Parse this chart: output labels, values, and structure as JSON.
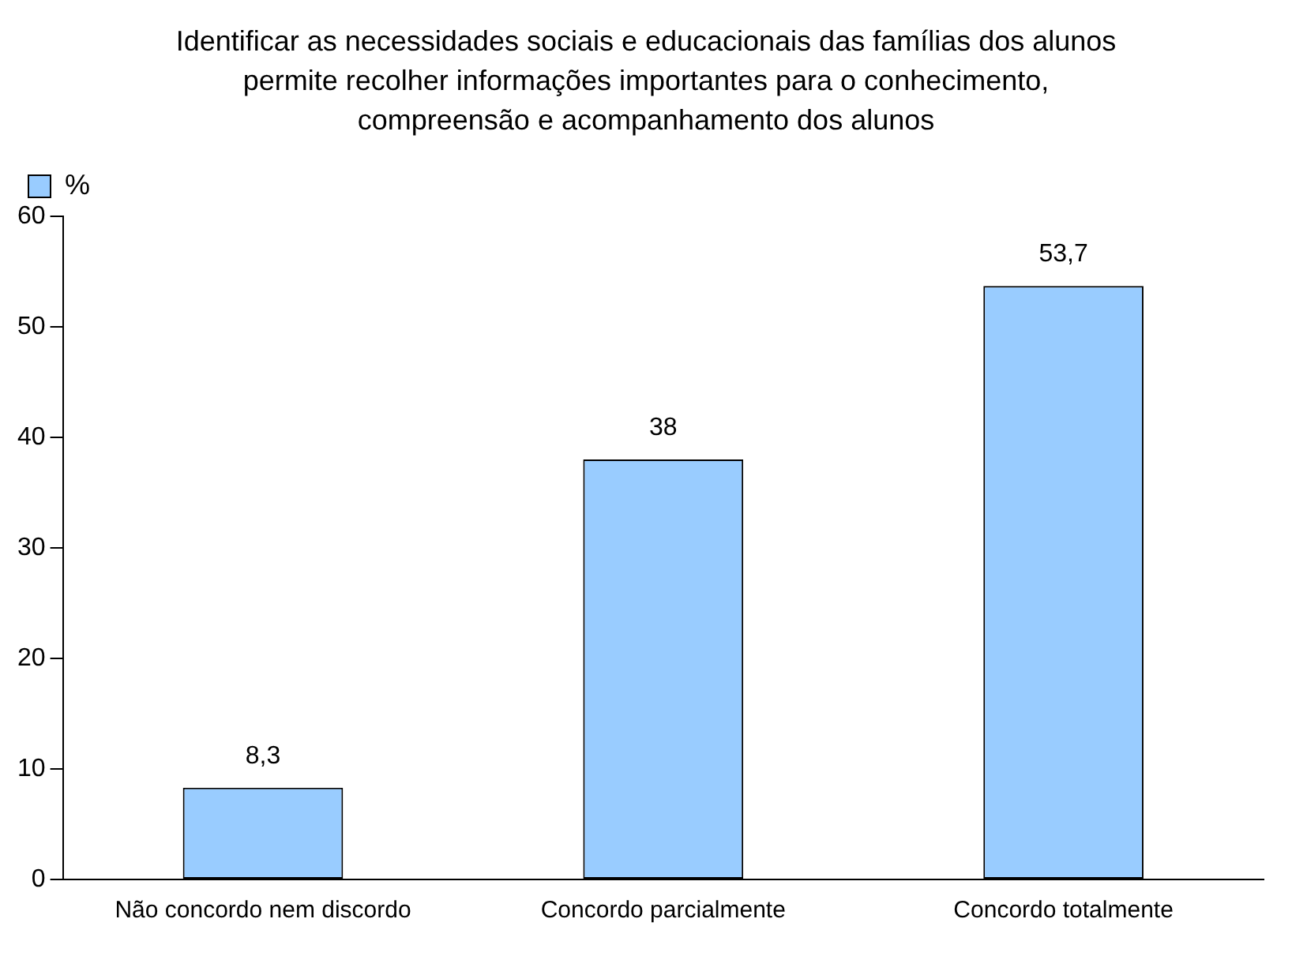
{
  "chart_data": {
    "type": "bar",
    "title": "Identificar as necessidades sociais e educacionais das famílias dos alunos permite recolher informações importantes para o conhecimento, compreensão e acompanhamento dos alunos",
    "categories": [
      "Não concordo nem discordo",
      "Concordo parcialmente",
      "Concordo totalmente"
    ],
    "series": [
      {
        "name": "%",
        "color": "#99ccff",
        "values": [
          8.3,
          38,
          53.7
        ],
        "value_labels": [
          "8,3",
          "38",
          "53,7"
        ]
      }
    ],
    "ylim": [
      0,
      60
    ],
    "yticks": [
      0,
      10,
      20,
      30,
      40,
      50,
      60
    ],
    "grid": false,
    "legend": "top left"
  }
}
